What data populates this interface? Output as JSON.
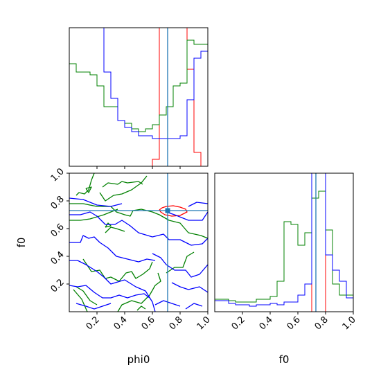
{
  "chart_data": {
    "type": "corner",
    "parameters": [
      "phi0",
      "f0"
    ],
    "truth": {
      "phi0": 0.71,
      "f0": 0.73
    },
    "ticks": {
      "diag_phi0_bottom": [
        "",
        "",
        "",
        ""
      ],
      "phi0": [
        "0.2",
        "0.4",
        "0.6",
        "0.8",
        "1.0"
      ],
      "f0_y": [
        "0.2",
        "0.4",
        "0.6",
        "0.8",
        "1.0"
      ],
      "f0_x": [
        "0.2",
        "0.4",
        "0.6",
        "0.8",
        "1.0"
      ]
    },
    "labels": {
      "x_phi0": "phi0",
      "y_f0": "f0",
      "x_f0": "f0"
    },
    "colors": {
      "red": "#ff0000",
      "green": "#008000",
      "blue": "#0000ff",
      "truth": "#1f77b4"
    },
    "hist_phi0": {
      "bins": 20,
      "range": [
        0,
        1
      ],
      "series": [
        {
          "color": "red",
          "values": [
            0,
            0,
            0,
            0,
            0,
            0,
            0,
            0,
            0,
            0,
            0,
            0,
            0.05,
            6,
            6,
            6,
            6,
            0.7,
            0.1,
            0
          ]
        },
        {
          "color": "green",
          "values": [
            0.74,
            0.68,
            0.68,
            0.66,
            0.58,
            0.43,
            0.43,
            0.33,
            0.31,
            0.27,
            0.25,
            0.27,
            0.3,
            0.37,
            0.43,
            0.58,
            0.6,
            0.91,
            0.88,
            0.88
          ]
        },
        {
          "color": "blue",
          "values": [
            1.0,
            1.0,
            1.0,
            1.0,
            1.0,
            0.68,
            0.49,
            0.33,
            0.28,
            0.25,
            0.22,
            0.22,
            0.2,
            0.2,
            0.2,
            0.2,
            0.22,
            0.48,
            0.78,
            0.83
          ]
        }
      ]
    },
    "hist_f0": {
      "bins": 20,
      "range": [
        0,
        1
      ],
      "series": [
        {
          "color": "red",
          "values": [
            0,
            0,
            0,
            0,
            0,
            0,
            0,
            0,
            0,
            0,
            0,
            0,
            0,
            0,
            2.2,
            2.2,
            0,
            0,
            0,
            0
          ]
        },
        {
          "color": "green",
          "values": [
            0.09,
            0.09,
            0.08,
            0.07,
            0.07,
            0.07,
            0.09,
            0.09,
            0.11,
            0.22,
            0.65,
            0.63,
            0.48,
            0.57,
            0.82,
            0.87,
            0.59,
            0.2,
            0.12,
            0.12
          ]
        },
        {
          "color": "blue",
          "values": [
            0.08,
            0.08,
            0.06,
            0.05,
            0.05,
            0.04,
            0.05,
            0.05,
            0.06,
            0.05,
            0.07,
            0.07,
            0.12,
            0.2,
            1.2,
            1.2,
            0.41,
            0.3,
            0.22,
            0.1
          ]
        }
      ]
    },
    "contours": [
      {
        "color": "red",
        "paths": [
          [
            [
              0.65,
              0.735
            ],
            [
              0.67,
              0.75
            ],
            [
              0.7,
              0.76
            ],
            [
              0.75,
              0.765
            ],
            [
              0.8,
              0.755
            ],
            [
              0.84,
              0.74
            ],
            [
              0.85,
              0.72
            ],
            [
              0.8,
              0.695
            ],
            [
              0.74,
              0.69
            ],
            [
              0.69,
              0.7
            ],
            [
              0.66,
              0.72
            ],
            [
              0.65,
              0.735
            ]
          ]
        ]
      },
      {
        "color": "green",
        "paths": [
          [
            [
              0.05,
              0.84
            ],
            [
              0.07,
              0.86
            ],
            [
              0.11,
              0.85
            ],
            [
              0.14,
              0.88
            ],
            [
              0.16,
              0.95
            ],
            [
              0.18,
              1.0
            ]
          ],
          [
            [
              0.0,
              0.78
            ],
            [
              0.1,
              0.78
            ],
            [
              0.2,
              0.76
            ],
            [
              0.3,
              0.76
            ],
            [
              0.34,
              0.72
            ],
            [
              0.4,
              0.7
            ],
            [
              0.44,
              0.69
            ],
            [
              0.46,
              0.73
            ],
            [
              0.52,
              0.74
            ],
            [
              0.6,
              0.72
            ],
            [
              0.65,
              0.7
            ],
            [
              0.72,
              0.66
            ],
            [
              0.8,
              0.64
            ],
            [
              0.86,
              0.57
            ],
            [
              0.95,
              0.55
            ],
            [
              1.0,
              0.53
            ]
          ],
          [
            [
              0.0,
              0.66
            ],
            [
              0.08,
              0.66
            ],
            [
              0.15,
              0.67
            ],
            [
              0.25,
              0.7
            ],
            [
              0.35,
              0.74
            ]
          ],
          [
            [
              0.22,
              0.86
            ],
            [
              0.26,
              0.8
            ],
            [
              0.32,
              0.84
            ],
            [
              0.38,
              0.85
            ],
            [
              0.45,
              0.88
            ],
            [
              0.52,
              0.93
            ],
            [
              0.56,
              0.98
            ]
          ],
          [
            [
              0.24,
              0.9
            ],
            [
              0.28,
              0.93
            ],
            [
              0.35,
              0.92
            ],
            [
              0.38,
              0.94
            ],
            [
              0.42,
              0.93
            ],
            [
              0.5,
              0.94
            ],
            [
              0.53,
              0.92
            ]
          ],
          [
            [
              0.1,
              0.38
            ],
            [
              0.16,
              0.29
            ],
            [
              0.22,
              0.3
            ],
            [
              0.26,
              0.24
            ],
            [
              0.3,
              0.25
            ],
            [
              0.36,
              0.22
            ],
            [
              0.41,
              0.28
            ],
            [
              0.45,
              0.29
            ],
            [
              0.48,
              0.24
            ],
            [
              0.53,
              0.27
            ],
            [
              0.58,
              0.31
            ],
            [
              0.6,
              0.36
            ]
          ],
          [
            [
              0.05,
              0.18
            ],
            [
              0.1,
              0.15
            ],
            [
              0.15,
              0.08
            ],
            [
              0.2,
              0.05
            ]
          ],
          [
            [
              0.35,
              0.0
            ],
            [
              0.38,
              0.05
            ],
            [
              0.45,
              0.08
            ],
            [
              0.52,
              0.06
            ],
            [
              0.58,
              0.12
            ],
            [
              0.62,
              0.19
            ],
            [
              0.66,
              0.22
            ],
            [
              0.64,
              0.28
            ]
          ],
          [
            [
              0.7,
              0.28
            ],
            [
              0.76,
              0.32
            ],
            [
              0.82,
              0.32
            ],
            [
              0.85,
              0.4
            ],
            [
              0.9,
              0.43
            ]
          ],
          [
            [
              0.26,
              0.57
            ],
            [
              0.3,
              0.61
            ],
            [
              0.34,
              0.6
            ],
            [
              0.4,
              0.58
            ]
          ],
          [
            [
              0.12,
              0.89
            ],
            [
              0.16,
              0.9
            ],
            [
              0.14,
              0.86
            ],
            [
              0.12,
              0.89
            ]
          ],
          [
            [
              0.26,
              0.61
            ],
            [
              0.28,
              0.64
            ],
            [
              0.3,
              0.62
            ],
            [
              0.26,
              0.61
            ]
          ],
          [
            [
              0.49,
              0.01
            ],
            [
              0.52,
              0.04
            ],
            [
              0.55,
              0.02
            ]
          ],
          [
            [
              0.03,
              0.16
            ],
            [
              0.09,
              0.09
            ],
            [
              0.13,
              0.0
            ]
          ]
        ]
      },
      {
        "color": "blue",
        "paths": [
          [
            [
              0.0,
              0.7
            ],
            [
              0.08,
              0.7
            ],
            [
              0.15,
              0.72
            ],
            [
              0.2,
              0.69
            ],
            [
              0.26,
              0.63
            ],
            [
              0.33,
              0.63
            ],
            [
              0.38,
              0.66
            ],
            [
              0.44,
              0.62
            ],
            [
              0.5,
              0.57
            ],
            [
              0.6,
              0.54
            ],
            [
              0.68,
              0.56
            ],
            [
              0.72,
              0.52
            ],
            [
              0.8,
              0.52
            ],
            [
              0.88,
              0.48
            ],
            [
              0.96,
              0.49
            ],
            [
              1.0,
              0.53
            ]
          ],
          [
            [
              0.0,
              0.5
            ],
            [
              0.08,
              0.5
            ],
            [
              0.1,
              0.55
            ],
            [
              0.14,
              0.53
            ],
            [
              0.18,
              0.54
            ],
            [
              0.22,
              0.5
            ],
            [
              0.28,
              0.46
            ],
            [
              0.34,
              0.4
            ],
            [
              0.42,
              0.38
            ],
            [
              0.5,
              0.36
            ],
            [
              0.56,
              0.38
            ],
            [
              0.62,
              0.37
            ]
          ],
          [
            [
              0.0,
              0.37
            ],
            [
              0.06,
              0.37
            ],
            [
              0.12,
              0.34
            ],
            [
              0.2,
              0.29
            ],
            [
              0.25,
              0.25
            ],
            [
              0.3,
              0.2
            ],
            [
              0.4,
              0.23
            ],
            [
              0.48,
              0.18
            ],
            [
              0.55,
              0.15
            ],
            [
              0.6,
              0.07
            ],
            [
              0.62,
              0.0
            ]
          ],
          [
            [
              0.0,
              0.19
            ],
            [
              0.06,
              0.18
            ],
            [
              0.12,
              0.19
            ],
            [
              0.18,
              0.14
            ],
            [
              0.24,
              0.1
            ],
            [
              0.3,
              0.1
            ],
            [
              0.36,
              0.12
            ],
            [
              0.42,
              0.1
            ],
            [
              0.48,
              0.12
            ],
            [
              0.54,
              0.13
            ],
            [
              0.58,
              0.1
            ]
          ],
          [
            [
              0.05,
              0.06
            ],
            [
              0.12,
              0.04
            ],
            [
              0.18,
              0.02
            ],
            [
              0.24,
              0.04
            ],
            [
              0.3,
              0.06
            ]
          ],
          [
            [
              0.7,
              0.72
            ],
            [
              0.76,
              0.7
            ],
            [
              0.86,
              0.66
            ],
            [
              0.96,
              0.66
            ],
            [
              1.0,
              0.72
            ]
          ],
          [
            [
              0.86,
              0.76
            ],
            [
              0.92,
              0.79
            ],
            [
              1.0,
              0.78
            ]
          ],
          [
            [
              0.6,
              0.42
            ],
            [
              0.66,
              0.39
            ],
            [
              0.7,
              0.34
            ],
            [
              0.76,
              0.3
            ],
            [
              0.84,
              0.3
            ],
            [
              0.88,
              0.25
            ],
            [
              0.94,
              0.27
            ],
            [
              1.0,
              0.34
            ]
          ],
          [
            [
              0.74,
              0.21
            ],
            [
              0.8,
              0.18
            ],
            [
              0.86,
              0.16
            ],
            [
              0.94,
              0.18
            ],
            [
              1.0,
              0.14
            ]
          ],
          [
            [
              0.0,
              0.82
            ],
            [
              0.1,
              0.81
            ],
            [
              0.2,
              0.77
            ],
            [
              0.3,
              0.76
            ],
            [
              0.38,
              0.78
            ]
          ],
          [
            [
              0.62,
              0.05
            ],
            [
              0.68,
              0.08
            ],
            [
              0.74,
              0.06
            ],
            [
              0.8,
              0.04
            ]
          ],
          [
            [
              0.84,
              0.02
            ],
            [
              0.9,
              0.06
            ],
            [
              0.96,
              0.04
            ]
          ]
        ]
      }
    ]
  }
}
